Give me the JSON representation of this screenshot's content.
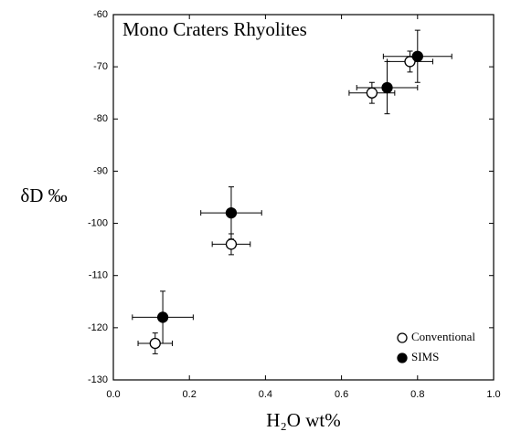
{
  "chart_data": {
    "type": "scatter",
    "title": "Mono Craters Rhyolites",
    "xlabel": "H₂O wt%",
    "ylabel": "δD ‰",
    "xlim": [
      0,
      1
    ],
    "ylim": [
      -130,
      -60
    ],
    "xticks": [
      {
        "value": 0,
        "label": "0.0"
      },
      {
        "value": 0.2,
        "label": "0.2"
      },
      {
        "value": 0.4,
        "label": "0.4"
      },
      {
        "value": 0.6,
        "label": "0.6"
      },
      {
        "value": 0.8,
        "label": "0.8"
      },
      {
        "value": 1,
        "label": "1.0"
      }
    ],
    "yticks": [
      -130,
      -120,
      -110,
      -100,
      -90,
      -80,
      -70,
      -60
    ],
    "legend": "lower right",
    "series": [
      {
        "name": "Conventional",
        "color": "#ffffff",
        "x": [
          0.11,
          0.31,
          0.68,
          0.78
        ],
        "values": [
          -123,
          -104,
          -75,
          -69
        ],
        "xerr": [
          0.045,
          0.05,
          0.06,
          0.06
        ],
        "yerr": [
          2,
          2,
          2,
          2
        ]
      },
      {
        "name": "SIMS",
        "color": "#000000",
        "x": [
          0.13,
          0.31,
          0.72,
          0.8
        ],
        "values": [
          -118,
          -98,
          -74,
          -68
        ],
        "xerr": [
          0.08,
          0.08,
          0.08,
          0.09
        ],
        "yerr": [
          5,
          5,
          5,
          5
        ]
      }
    ]
  }
}
